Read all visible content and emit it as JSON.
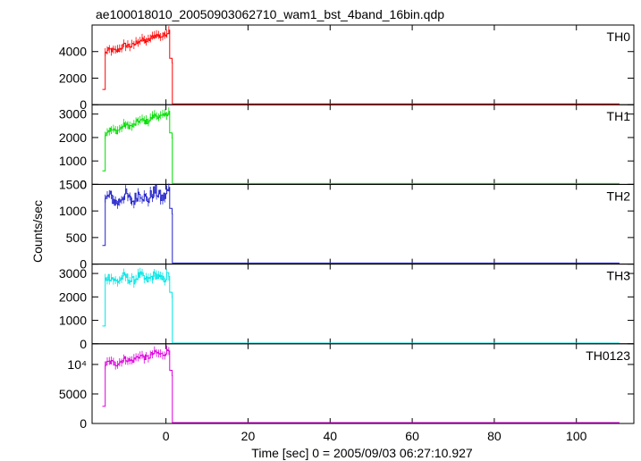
{
  "chart_data": {
    "type": "line",
    "title": "ae100018010_20050903062710_wam1_bst_4band_16bin.qdp",
    "xlabel": "Time [sec] 0 = 2005/09/03 06:27:10.927",
    "ylabel": "Counts/sec",
    "xlim": [
      -18,
      114
    ],
    "x_ticks": [
      0,
      20,
      40,
      60,
      80,
      100
    ],
    "grid": false,
    "panels": [
      {
        "name": "TH0",
        "color": "#ff0000",
        "ylim": [
          0,
          6000
        ],
        "y_ticks": [
          0,
          2000,
          4000
        ],
        "y_tick_labels": [
          "0",
          "2000",
          "4000"
        ],
        "base": 1150,
        "plateau_start": 3900,
        "plateau_end": 5450,
        "drop": 3500,
        "tail": 60,
        "noise": 200
      },
      {
        "name": "TH1",
        "color": "#00dd00",
        "ylim": [
          0,
          3400
        ],
        "y_ticks": [
          0,
          1000,
          2000,
          3000
        ],
        "y_tick_labels": [
          "0",
          "1000",
          "2000",
          "3000"
        ],
        "base": 580,
        "plateau_start": 2200,
        "plateau_end": 3050,
        "drop": 2200,
        "tail": 40,
        "noise": 120
      },
      {
        "name": "TH2",
        "color": "#2222cc",
        "ylim": [
          0,
          1500
        ],
        "y_ticks": [
          0,
          500,
          1000,
          1500
        ],
        "y_tick_labels": [
          "0",
          "500",
          "1000",
          "1500"
        ],
        "base": 350,
        "plateau_start": 1200,
        "plateau_end": 1330,
        "drop": 1050,
        "tail": 20,
        "noise": 120
      },
      {
        "name": "TH3",
        "color": "#00e5e5",
        "ylim": [
          0,
          3400
        ],
        "y_ticks": [
          0,
          1000,
          2000,
          3000
        ],
        "y_tick_labels": [
          "0",
          "1000",
          "2000",
          "3000"
        ],
        "base": 760,
        "plateau_start": 2750,
        "plateau_end": 2850,
        "drop": 2200,
        "tail": 30,
        "noise": 180
      },
      {
        "name": "TH0123",
        "color": "#dd00dd",
        "ylim": [
          0,
          13500
        ],
        "y_ticks": [
          0,
          5000,
          10000
        ],
        "y_tick_labels": [
          "0",
          "5000",
          "10⁴"
        ],
        "base": 2900,
        "plateau_start": 10000,
        "plateau_end": 12200,
        "drop": 9000,
        "tail": 150,
        "noise": 450
      }
    ]
  }
}
